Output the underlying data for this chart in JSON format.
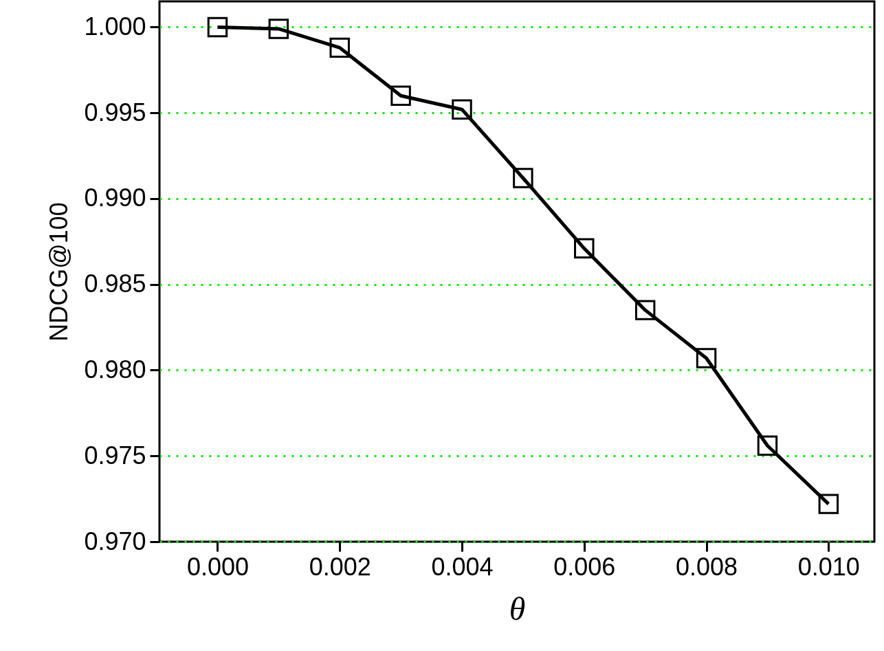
{
  "chart_data": {
    "type": "line",
    "xlabel": "θ",
    "ylabel": "NDCG@100",
    "x": [
      0,
      0.001,
      0.002,
      0.003,
      0.004,
      0.005,
      0.006,
      0.007,
      0.008,
      0.009,
      0.01
    ],
    "series": [
      {
        "color": "#000000",
        "values": [
          1.0,
          0.9999,
          0.9988,
          0.996,
          0.9952,
          0.9912,
          0.9871,
          0.9835,
          0.9807,
          0.9756,
          0.9722
        ]
      }
    ],
    "xlim": [
      -0.00095,
      0.01075
    ],
    "xticks": [
      {
        "value": 0,
        "label": "0.000"
      },
      {
        "value": 0.002,
        "label": "0.002"
      },
      {
        "value": 0.004,
        "label": "0.004"
      },
      {
        "value": 0.006,
        "label": "0.006"
      },
      {
        "value": 0.008,
        "label": "0.008"
      },
      {
        "value": 0.01,
        "label": "0.010"
      }
    ],
    "ylim": [
      0.97,
      1.0015
    ],
    "yticks": [
      {
        "value": 0.97,
        "label": "0.970"
      },
      {
        "value": 0.975,
        "label": "0.975"
      },
      {
        "value": 0.98,
        "label": "0.980"
      },
      {
        "value": 0.985,
        "label": "0.985"
      },
      {
        "value": 0.99,
        "label": "0.990"
      },
      {
        "value": 0.995,
        "label": "0.995"
      },
      {
        "value": 1,
        "label": "1.000"
      }
    ],
    "grid": "y",
    "marker": "square",
    "line_style": "solid"
  }
}
